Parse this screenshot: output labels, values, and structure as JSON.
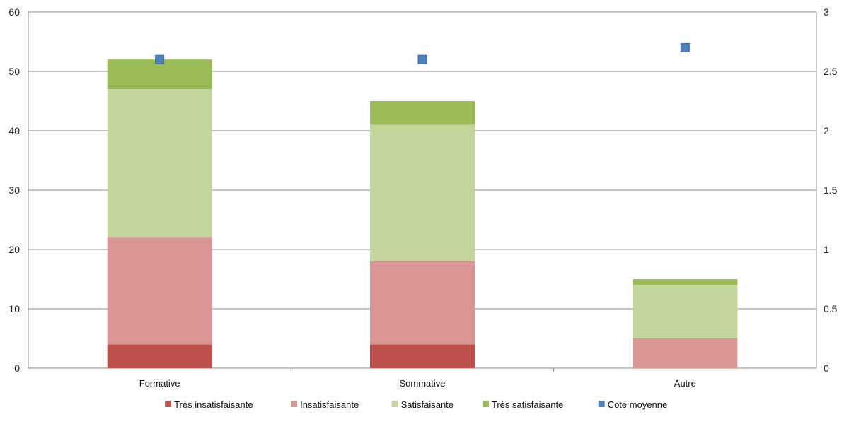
{
  "chart_data": {
    "type": "bar",
    "stacked": true,
    "categories": [
      "Formative",
      "Sommative",
      "Autre"
    ],
    "series": [
      {
        "name": "Très insatisfaisante",
        "values": [
          4,
          4,
          0
        ],
        "color": "#c0504d",
        "kind": "bar",
        "axis": "left"
      },
      {
        "name": "Insatisfaisante",
        "values": [
          18,
          14,
          5
        ],
        "color": "#d99694",
        "kind": "bar",
        "axis": "left"
      },
      {
        "name": "Satisfaisante",
        "values": [
          25,
          23,
          9
        ],
        "color": "#c3d69b",
        "kind": "bar",
        "axis": "left"
      },
      {
        "name": "Très satisfaisante",
        "values": [
          5,
          4,
          1
        ],
        "color": "#9bbb59",
        "kind": "bar",
        "axis": "left"
      },
      {
        "name": "Cote moyenne",
        "values": [
          2.6,
          2.6,
          2.7
        ],
        "color": "#4f81bd",
        "kind": "marker",
        "axis": "right"
      }
    ],
    "y_left": {
      "ylim": [
        0,
        60
      ],
      "ticks": [
        "0",
        "10",
        "20",
        "30",
        "40",
        "50",
        "60"
      ]
    },
    "y_right": {
      "ylim": [
        0,
        3
      ],
      "ticks": [
        "0",
        "0.5",
        "1",
        "1.5",
        "2",
        "2.5",
        "3"
      ]
    },
    "grid": true,
    "legend": "bottom",
    "title": "",
    "xlabel": "",
    "ylabel": ""
  }
}
